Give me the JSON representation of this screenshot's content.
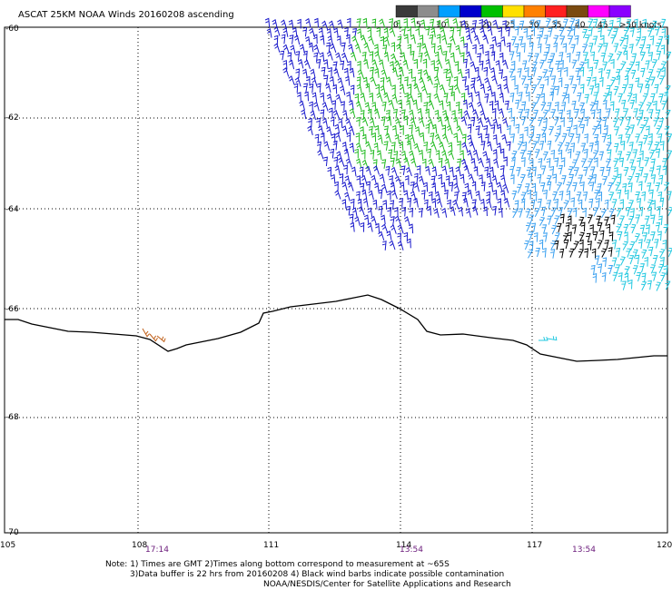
{
  "title": "ASCAT 25KM NOAA Winds 20160208 ascending",
  "legend": {
    "labels": [
      "0",
      "5",
      "10",
      "15",
      "20",
      "25",
      "30",
      "35",
      "40",
      "45",
      ">50 knots"
    ],
    "colors": [
      "#3a3a3a",
      "#8c8c8c",
      "#00a0ff",
      "#0000cc",
      "#00c000",
      "#ffe000",
      "#ff8000",
      "#ff2020",
      "#7a4a10",
      "#ff00ff",
      "#8a00ff"
    ]
  },
  "axes": {
    "x_ticks": [
      "105",
      "108",
      "111",
      "114",
      "117",
      "120"
    ],
    "y_ticks": [
      "-60",
      "-62",
      "-64",
      "-66",
      "-68",
      "-70"
    ]
  },
  "times": [
    "17:14",
    "13:54",
    "13:54"
  ],
  "notes": [
    "Note: 1) Times are GMT 2)Times along bottom correspond to measurement at ~65S",
    "3)Data buffer is 22 hrs from 20160208 4) Black wind barbs indicate possible contamination",
    "NOAA/NESDIS/Center for Satellite Applications and Research"
  ],
  "colors": {
    "barb_blue": "#1a1acc",
    "barb_green": "#22bb22",
    "barb_cyan": "#22c8e0",
    "barb_lightblue": "#3aa0f0",
    "barb_black": "#000000",
    "barb_brown": "#c0601a",
    "grid": "#000000",
    "coast": "#000000"
  }
}
